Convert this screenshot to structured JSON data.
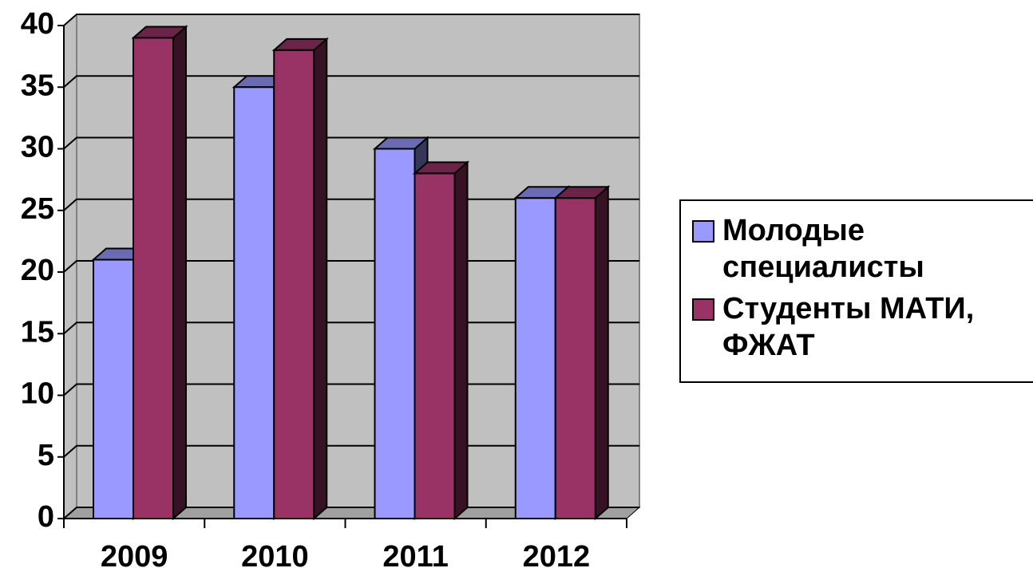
{
  "chart_data": {
    "type": "bar3d",
    "categories": [
      "2009",
      "2010",
      "2011",
      "2012"
    ],
    "series": [
      {
        "name": "Молодые специалисты",
        "color": "#9999ff",
        "values": [
          21,
          35,
          30,
          26
        ]
      },
      {
        "name": "Студенты МАТИ, ФЖАТ",
        "color": "#993366",
        "values": [
          39,
          38,
          28,
          26
        ]
      }
    ],
    "ylim": [
      0,
      40
    ],
    "yticks": [
      0,
      5,
      10,
      15,
      20,
      25,
      30,
      35,
      40
    ],
    "grid": true,
    "legend": "right"
  }
}
